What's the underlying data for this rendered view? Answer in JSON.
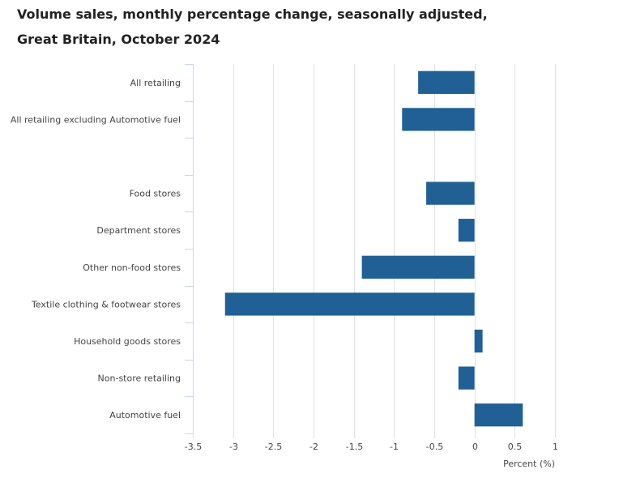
{
  "chart_data": {
    "type": "bar",
    "orientation": "horizontal",
    "title": "Volume sales, monthly percentage change, seasonally adjusted, Great Britain, October 2024",
    "xlabel": "Percent (%)",
    "ylabel": "",
    "xlim": [
      -3.5,
      1
    ],
    "x_ticks": [
      -3.5,
      -3,
      -2.5,
      -2,
      -1.5,
      -1,
      -0.5,
      0,
      0.5,
      1
    ],
    "x_tick_labels": [
      "-3.5",
      "-3",
      "-2.5",
      "-2",
      "-1.5",
      "-1",
      "-0.5",
      "0",
      "0.5",
      "1"
    ],
    "grid": true,
    "legend": "none",
    "series_color": "#206095",
    "categories": [
      "All retailing",
      "All retailing excluding Automotive fuel",
      "",
      "Food stores",
      "Department stores",
      "Other non-food stores",
      "Textile clothing & footwear stores",
      "Household goods stores",
      "Non-store retailing",
      "Automotive fuel"
    ],
    "values": [
      -0.7,
      -0.9,
      null,
      -0.6,
      -0.2,
      -1.4,
      -3.1,
      0.1,
      -0.2,
      0.6
    ]
  }
}
